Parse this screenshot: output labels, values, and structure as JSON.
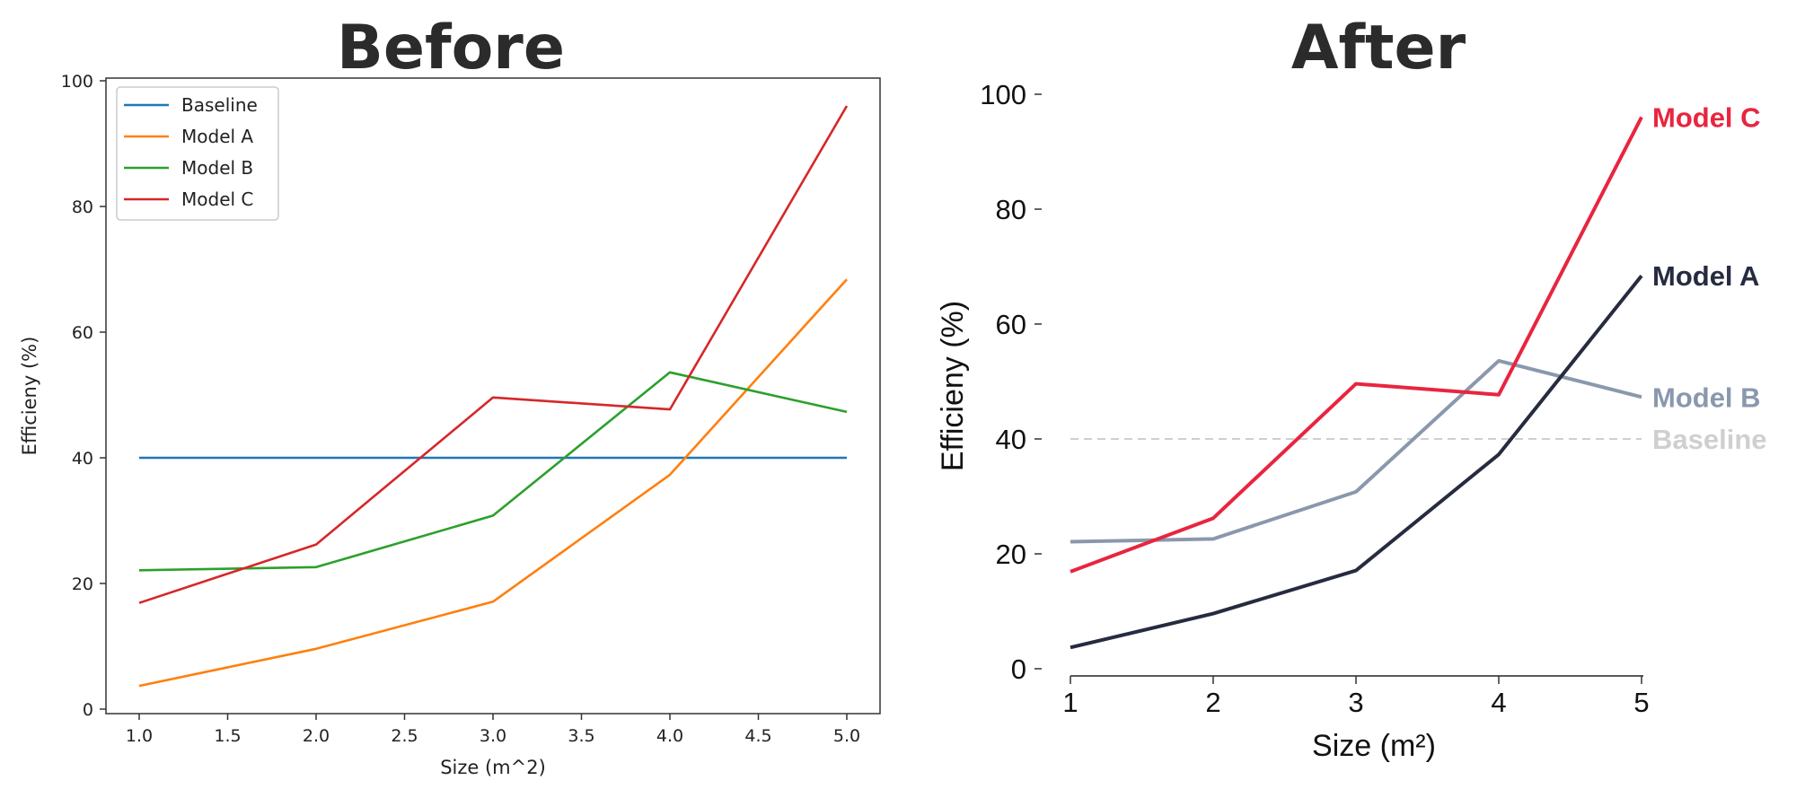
{
  "chart_data": [
    {
      "type": "line",
      "title": "Before",
      "xlabel": "Size (m^2)",
      "ylabel": "Efficieny (%)",
      "x": [
        1,
        2,
        3,
        4,
        5
      ],
      "xlim": [
        0.8,
        5.2
      ],
      "ylim": [
        -1,
        100
      ],
      "xticks": [
        "1.0",
        "1.5",
        "2.0",
        "2.5",
        "3.0",
        "3.5",
        "4.0",
        "4.5",
        "5.0"
      ],
      "yticks": [
        "0",
        "20",
        "40",
        "60",
        "80",
        "100"
      ],
      "legend": "top-left",
      "grid": false,
      "series": [
        {
          "name": "Baseline",
          "values": [
            40,
            40,
            40,
            40,
            40
          ],
          "color": "#1f77b4"
        },
        {
          "name": "Model A",
          "values": [
            3.7,
            9.6,
            17.1,
            37.3,
            68.4
          ],
          "color": "#ff7f0e"
        },
        {
          "name": "Model B",
          "values": [
            22.1,
            22.6,
            30.8,
            53.6,
            47.3
          ],
          "color": "#2ca02c"
        },
        {
          "name": "Model C",
          "values": [
            16.9,
            26.2,
            49.6,
            47.7,
            96.0
          ],
          "color": "#d62728"
        }
      ]
    },
    {
      "type": "line",
      "title": "After",
      "xlabel": "Size (m²)",
      "ylabel": "Efficieny (%)",
      "x": [
        1,
        2,
        3,
        4,
        5
      ],
      "xlim": [
        1,
        5
      ],
      "ylim": [
        -1,
        100
      ],
      "xticks": [
        "1",
        "2",
        "3",
        "4",
        "5"
      ],
      "yticks": [
        "0",
        "20",
        "40",
        "60",
        "80",
        "100"
      ],
      "legend": "direct labels at line ends",
      "grid": false,
      "series": [
        {
          "name": "Model C",
          "values": [
            16.9,
            26.2,
            49.6,
            47.7,
            96.0
          ],
          "color": "#e8253f",
          "style": "solid"
        },
        {
          "name": "Model A",
          "values": [
            3.7,
            9.6,
            17.1,
            37.3,
            68.4
          ],
          "color": "#262b40",
          "style": "solid"
        },
        {
          "name": "Model B",
          "values": [
            22.1,
            22.6,
            30.8,
            53.6,
            47.3
          ],
          "color": "#8a98ad",
          "style": "solid"
        },
        {
          "name": "Baseline",
          "values": [
            40,
            40,
            40,
            40,
            40
          ],
          "color": "#cfcfcf",
          "style": "dashed"
        }
      ]
    }
  ]
}
